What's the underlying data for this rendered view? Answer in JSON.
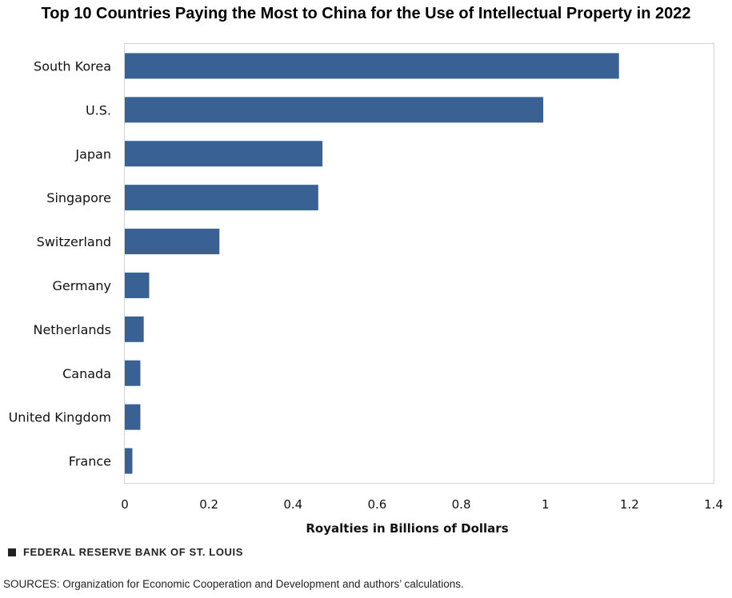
{
  "chart_data": {
    "type": "bar",
    "orientation": "horizontal",
    "title": "Top 10 Countries Paying the Most to China for the Use of Intellectual Property in 2022",
    "xlabel": "Royalties in Billions of Dollars",
    "ylabel": "",
    "categories": [
      "South Korea",
      "U.S.",
      "Japan",
      "Singapore",
      "Switzerland",
      "Germany",
      "Netherlands",
      "Canada",
      "United Kingdom",
      "France"
    ],
    "values": [
      1.175,
      0.995,
      0.47,
      0.46,
      0.225,
      0.058,
      0.045,
      0.037,
      0.037,
      0.018
    ],
    "xlim": [
      0,
      1.4
    ],
    "xticks": [
      0,
      0.2,
      0.4,
      0.6,
      0.8,
      1,
      1.2,
      1.4
    ],
    "xtick_labels": [
      "0",
      "0.2",
      "0.4",
      "0.6",
      "0.8",
      "1",
      "1.2",
      "1.4"
    ],
    "grid": false,
    "legend": "none",
    "bar_color": "#3a6193",
    "frame_color": "#d4d4d4"
  },
  "footer": {
    "brand": "FEDERAL RESERVE BANK OF ST. LOUIS",
    "sources": "SOURCES: Organization for Economic Cooperation and Development and authors’ calculations."
  }
}
